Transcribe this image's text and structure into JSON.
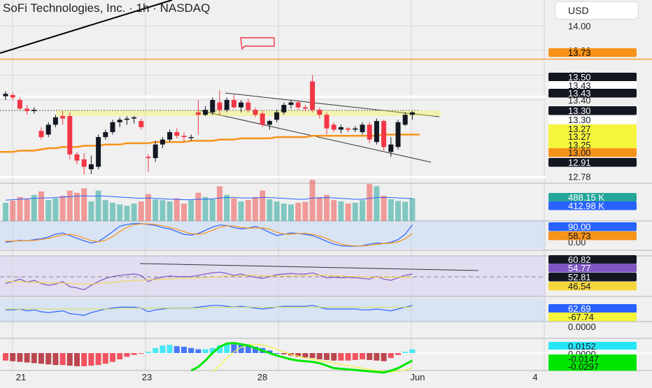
{
  "header": {
    "title": "SoFi Technologies, Inc. · 1h · NASDAQ",
    "currency": "USD"
  },
  "price_axis": {
    "ticks": [
      "14.00",
      "13.80",
      "13.60",
      "13.40",
      "12.78",
      "0.00",
      "0.0000"
    ],
    "labels": [
      {
        "text": "13.73",
        "bg": "#f7931a",
        "fg": "#000000",
        "value": 13.73
      },
      {
        "text": "13.50",
        "bg": "#131722",
        "fg": "#ffffff",
        "value": 13.5
      },
      {
        "text": "13.43",
        "bg": "#ffffff",
        "fg": "#131722",
        "value": 13.46
      },
      {
        "text": "13.43",
        "bg": "#131722",
        "fg": "#ffffff",
        "value": 13.43
      },
      {
        "text": "13.30",
        "bg": "#131722",
        "fg": "#ffffff",
        "value": 13.3
      },
      {
        "text": "13.30",
        "bg": "#ffffff",
        "fg": "#131722",
        "value": 13.27
      },
      {
        "text": "13.27",
        "bg": "#f5f53c",
        "fg": "#131722",
        "value": 13.24
      },
      {
        "text": "13.27",
        "bg": "#f5f53c",
        "fg": "#131722",
        "value": 13.21
      },
      {
        "text": "13.25",
        "bg": "#f5f53c",
        "fg": "#131722",
        "value": 13.18
      },
      {
        "text": "13.00",
        "bg": "#f7931a",
        "fg": "#131722",
        "value": 13.14
      },
      {
        "text": "12.91",
        "bg": "#131722",
        "fg": "#ffffff",
        "value": 13.07
      },
      {
        "text": "488.15 K",
        "bg": "#26a69a",
        "fg": "#ffffff",
        "value": null
      },
      {
        "text": "412.98 K",
        "bg": "#2962ff",
        "fg": "#ffffff",
        "value": null
      },
      {
        "text": "90.00",
        "bg": "#2962ff",
        "fg": "#ffffff",
        "value": null
      },
      {
        "text": "58.73",
        "bg": "#f7931a",
        "fg": "#131722",
        "value": null
      },
      {
        "text": "60.82",
        "bg": "#131722",
        "fg": "#ffffff",
        "value": null
      },
      {
        "text": "54.77",
        "bg": "#7e57c2",
        "fg": "#ffffff",
        "value": null
      },
      {
        "text": "52.81",
        "bg": "#131722",
        "fg": "#ffffff",
        "value": null
      },
      {
        "text": "46.54",
        "bg": "#f5d63c",
        "fg": "#131722",
        "value": null
      },
      {
        "text": "62.69",
        "bg": "#2962ff",
        "fg": "#ffffff",
        "value": null
      },
      {
        "text": "-67.74",
        "bg": "#f5f53c",
        "fg": "#131722",
        "value": null
      },
      {
        "text": "0.0152",
        "bg": "#26e6f6",
        "fg": "#131722",
        "value": null
      },
      {
        "text": "0.0000",
        "bg": "#ffffff",
        "fg": "#131722",
        "value": null
      },
      {
        "text": "-0.0147",
        "bg": "#00e600",
        "fg": "#131722",
        "value": null
      },
      {
        "text": "-0.0297",
        "bg": "#00e600",
        "fg": "#131722",
        "value": null
      }
    ]
  },
  "time_axis": {
    "labels": [
      "21",
      "23",
      "28",
      "Jun",
      "4"
    ]
  },
  "colors": {
    "up": "#131722",
    "down": "#f23645",
    "vol_up": "#26a69a",
    "vol_down": "#ef5350",
    "ma200": "#f7931a",
    "horizontal_line": "#f7931a",
    "stoch_k": "#2962ff",
    "stoch_d": "#f7931a",
    "rsi": "#7e57c2",
    "macd_pos": "#26e6f6",
    "macd_neg": "#2962ff",
    "macd_down": "#b22833",
    "macd_up": "#f23645"
  },
  "chart_data": {
    "type": "candlestick",
    "title": "SoFi Technologies, Inc. · 1h · NASDAQ",
    "ylim": [
      12.75,
      14.05
    ],
    "horizontal_level": 13.73,
    "candles": [
      [
        13.43,
        13.47,
        13.4,
        13.45
      ],
      [
        13.44,
        13.46,
        13.4,
        13.42
      ],
      [
        13.4,
        13.42,
        13.32,
        13.33
      ],
      [
        13.33,
        13.36,
        13.28,
        13.31
      ],
      [
        13.31,
        13.34,
        13.29,
        13.32
      ],
      [
        13.15,
        13.18,
        13.08,
        13.1
      ],
      [
        13.12,
        13.22,
        13.1,
        13.2
      ],
      [
        13.2,
        13.28,
        13.18,
        13.26
      ],
      [
        13.27,
        13.31,
        13.2,
        13.25
      ],
      [
        13.27,
        13.3,
        12.92,
        12.96
      ],
      [
        12.96,
        12.98,
        12.88,
        12.91
      ],
      [
        12.92,
        12.97,
        12.8,
        12.86
      ],
      [
        12.84,
        12.95,
        12.8,
        12.88
      ],
      [
        12.86,
        13.12,
        12.84,
        13.1
      ],
      [
        13.1,
        13.16,
        13.08,
        13.14
      ],
      [
        13.14,
        13.24,
        13.12,
        13.22
      ],
      [
        13.22,
        13.26,
        13.18,
        13.24
      ],
      [
        13.24,
        13.27,
        13.2,
        13.25
      ],
      [
        13.25,
        13.27,
        13.21,
        13.26
      ],
      [
        13.23,
        13.25,
        13.16,
        13.18
      ],
      [
        12.94,
        12.96,
        12.82,
        12.93
      ],
      [
        12.93,
        13.07,
        12.9,
        13.04
      ],
      [
        13.04,
        13.1,
        13.01,
        13.08
      ],
      [
        13.08,
        13.16,
        13.06,
        13.14
      ],
      [
        13.14,
        13.17,
        13.09,
        13.11
      ],
      [
        13.11,
        13.14,
        13.06,
        13.1
      ],
      [
        13.1,
        13.12,
        13.07,
        13.1
      ],
      [
        13.3,
        13.4,
        13.12,
        13.28
      ],
      [
        13.28,
        13.35,
        13.27,
        13.32
      ],
      [
        13.3,
        13.42,
        13.28,
        13.4
      ],
      [
        13.38,
        13.48,
        13.28,
        13.32
      ],
      [
        13.32,
        13.42,
        13.3,
        13.4
      ],
      [
        13.4,
        13.44,
        13.33,
        13.34
      ],
      [
        13.34,
        13.4,
        13.3,
        13.38
      ],
      [
        13.38,
        13.41,
        13.3,
        13.32
      ],
      [
        13.32,
        13.34,
        13.26,
        13.28
      ],
      [
        13.29,
        13.31,
        13.18,
        13.2
      ],
      [
        13.2,
        13.24,
        13.16,
        13.23
      ],
      [
        13.24,
        13.32,
        13.22,
        13.3
      ],
      [
        13.3,
        13.38,
        13.28,
        13.36
      ],
      [
        13.36,
        13.4,
        13.33,
        13.38
      ],
      [
        13.38,
        13.4,
        13.32,
        13.34
      ],
      [
        13.34,
        13.36,
        13.31,
        13.33
      ],
      [
        13.55,
        13.6,
        13.3,
        13.32
      ],
      [
        13.32,
        13.34,
        13.25,
        13.28
      ],
      [
        13.28,
        13.3,
        13.12,
        13.17
      ],
      [
        13.2,
        13.22,
        13.14,
        13.16
      ],
      [
        13.16,
        13.2,
        13.13,
        13.18
      ],
      [
        13.17,
        13.18,
        13.14,
        13.16
      ],
      [
        13.16,
        13.19,
        13.14,
        13.17
      ],
      [
        13.14,
        13.22,
        13.12,
        13.2
      ],
      [
        13.2,
        13.22,
        13.05,
        13.08
      ],
      [
        13.06,
        13.25,
        13.04,
        13.23
      ],
      [
        13.23,
        13.24,
        12.99,
        13.02
      ],
      [
        12.98,
        13.1,
        12.94,
        13.04
      ],
      [
        13.02,
        13.24,
        13.0,
        13.22
      ],
      [
        13.2,
        13.3,
        13.19,
        13.28
      ],
      [
        13.28,
        13.31,
        13.24,
        13.3
      ]
    ],
    "ma200": [
      12.98,
      12.98,
      12.99,
      12.99,
      12.99,
      13.0,
      13.01,
      13.01,
      13.02,
      13.02,
      13.02,
      13.03,
      13.03,
      13.03,
      13.04,
      13.04,
      13.04,
      13.05,
      13.05,
      13.05,
      13.05,
      13.06,
      13.06,
      13.06,
      13.06,
      13.06,
      13.07,
      13.07,
      13.07,
      13.07,
      13.08,
      13.08,
      13.08,
      13.09,
      13.09,
      13.09,
      13.09,
      13.09,
      13.1,
      13.1,
      13.1,
      13.1,
      13.1,
      13.11,
      13.11,
      13.11,
      13.11,
      13.11,
      13.11,
      13.11,
      13.11,
      13.11,
      13.11,
      13.12,
      13.12,
      13.12,
      13.12,
      13.12
    ],
    "volume": [
      0.42,
      0.47,
      0.55,
      0.5,
      0.6,
      0.68,
      0.48,
      0.52,
      0.58,
      0.7,
      0.65,
      0.75,
      0.45,
      0.7,
      0.48,
      0.42,
      0.38,
      0.35,
      0.4,
      0.45,
      0.62,
      0.5,
      0.48,
      0.45,
      0.52,
      0.4,
      0.48,
      0.65,
      0.55,
      0.5,
      0.8,
      0.6,
      0.52,
      0.45,
      0.48,
      0.55,
      0.7,
      0.5,
      0.45,
      0.4,
      0.38,
      0.42,
      0.44,
      0.95,
      0.55,
      0.6,
      0.48,
      0.45,
      0.4,
      0.42,
      0.48,
      0.85,
      0.8,
      0.58,
      0.5,
      0.46,
      0.44,
      0.52
    ],
    "volume_ma": [
      0.48,
      0.49,
      0.5,
      0.51,
      0.52,
      0.53,
      0.53,
      0.54,
      0.55,
      0.56,
      0.57,
      0.58,
      0.57,
      0.58,
      0.57,
      0.56,
      0.55,
      0.54,
      0.53,
      0.52,
      0.53,
      0.52,
      0.51,
      0.5,
      0.5,
      0.49,
      0.49,
      0.5,
      0.5,
      0.51,
      0.53,
      0.54,
      0.54,
      0.53,
      0.53,
      0.53,
      0.54,
      0.54,
      0.53,
      0.52,
      0.51,
      0.5,
      0.5,
      0.53,
      0.53,
      0.54,
      0.53,
      0.52,
      0.51,
      0.5,
      0.5,
      0.52,
      0.54,
      0.54,
      0.54,
      0.53,
      0.52,
      0.52
    ],
    "stoch_k": [
      25,
      28,
      32,
      30,
      35,
      38,
      45,
      55,
      60,
      50,
      40,
      30,
      22,
      28,
      45,
      65,
      85,
      92,
      95,
      95,
      92,
      88,
      80,
      75,
      65,
      55,
      52,
      58,
      70,
      82,
      90,
      88,
      80,
      75,
      78,
      85,
      75,
      62,
      50,
      55,
      60,
      58,
      55,
      50,
      40,
      28,
      18,
      12,
      10,
      10,
      12,
      18,
      22,
      20,
      25,
      35,
      55,
      90
    ],
    "stoch_d": [
      30,
      29,
      30,
      31,
      32,
      35,
      40,
      46,
      53,
      55,
      50,
      40,
      31,
      27,
      32,
      46,
      65,
      81,
      91,
      94,
      94,
      92,
      87,
      81,
      73,
      65,
      57,
      55,
      60,
      70,
      81,
      87,
      86,
      81,
      78,
      79,
      79,
      74,
      62,
      56,
      55,
      58,
      58,
      55,
      48,
      39,
      28,
      19,
      13,
      11,
      11,
      13,
      17,
      20,
      22,
      27,
      38,
      58
    ],
    "rsi": [
      45,
      48,
      52,
      47,
      50,
      45,
      42,
      44,
      48,
      40,
      38,
      35,
      42,
      48,
      53,
      56,
      58,
      59,
      60,
      58,
      48,
      53,
      55,
      57,
      56,
      56,
      56,
      58,
      60,
      62,
      63,
      61,
      58,
      60,
      57,
      55,
      53,
      56,
      59,
      60,
      61,
      60,
      60,
      62,
      58,
      54,
      55,
      54,
      55,
      54,
      53,
      52,
      56,
      52,
      50,
      54,
      58,
      60
    ],
    "rsi_ma": [
      48,
      48,
      48,
      47,
      47,
      46,
      46,
      46,
      46,
      45,
      44,
      44,
      44,
      45,
      46,
      47,
      48,
      49,
      50,
      50,
      51,
      51,
      52,
      52,
      53,
      53,
      53,
      54,
      54,
      55,
      56,
      57,
      57,
      57,
      58,
      58,
      57,
      57,
      57,
      57,
      57,
      57,
      58,
      58,
      58,
      58,
      57,
      57,
      56,
      56,
      56,
      55,
      55,
      55,
      55,
      55,
      55,
      55
    ],
    "wave": [
      55,
      55,
      56,
      54,
      55,
      53,
      52,
      53,
      54,
      51,
      50,
      49,
      52,
      54,
      56,
      57,
      58,
      58,
      58,
      57,
      53,
      55,
      56,
      57,
      57,
      57,
      57,
      58,
      59,
      60,
      60,
      59,
      58,
      59,
      58,
      57,
      56,
      57,
      58,
      59,
      59,
      59,
      59,
      60,
      58,
      56,
      56,
      56,
      56,
      56,
      55,
      55,
      56,
      55,
      54,
      56,
      58,
      60
    ],
    "wave_signal": [
      56,
      56,
      56,
      56,
      56,
      56,
      56,
      56,
      56,
      56,
      56,
      56,
      56,
      56,
      56,
      56,
      57,
      57,
      57,
      57,
      57,
      57,
      57,
      57,
      57,
      57,
      57,
      57,
      57,
      58,
      58,
      58,
      58,
      58,
      58,
      58,
      58,
      58,
      58,
      58,
      58,
      58,
      58,
      58,
      58,
      58,
      58,
      58,
      58,
      58,
      58,
      58,
      58,
      58,
      58,
      58,
      58,
      58
    ],
    "macd_hist": [
      -0.012,
      -0.013,
      -0.014,
      -0.015,
      -0.016,
      -0.017,
      -0.018,
      -0.019,
      -0.019,
      -0.02,
      -0.021,
      -0.021,
      -0.02,
      -0.019,
      -0.017,
      -0.014,
      -0.01,
      -0.006,
      -0.003,
      -0.001,
      0.002,
      0.008,
      0.012,
      0.013,
      0.011,
      0.01,
      0.008,
      0.006,
      0.006,
      0.008,
      0.012,
      0.015,
      0.014,
      0.013,
      0.011,
      0.01,
      0.008,
      0.004,
      0.0,
      -0.002,
      -0.004,
      -0.006,
      -0.007,
      -0.008,
      -0.01,
      -0.011,
      -0.012,
      -0.012,
      -0.012,
      -0.011,
      -0.01,
      -0.011,
      -0.012,
      -0.013,
      -0.008,
      -0.003,
      0.002,
      0.006
    ],
    "macd_line": [
      null,
      null,
      null,
      null,
      null,
      null,
      null,
      null,
      null,
      null,
      null,
      null,
      null,
      null,
      null,
      null,
      null,
      null,
      null,
      null,
      null,
      null,
      null,
      null,
      null,
      null,
      -0.028,
      -0.022,
      -0.012,
      0.0,
      0.01,
      0.015,
      0.016,
      0.014,
      0.012,
      0.008,
      0.004,
      0.0,
      -0.004,
      -0.007,
      -0.01,
      -0.012,
      -0.013,
      -0.014,
      -0.016,
      -0.02,
      -0.024,
      -0.025,
      -0.026,
      -0.027,
      -0.028,
      -0.029,
      -0.03,
      -0.031,
      -0.028,
      -0.024,
      -0.018,
      -0.012
    ],
    "macd_signal": [
      null,
      null,
      null,
      null,
      null,
      null,
      null,
      null,
      null,
      null,
      null,
      null,
      null,
      null,
      null,
      null,
      null,
      null,
      null,
      null,
      null,
      null,
      null,
      null,
      null,
      null,
      null,
      null,
      null,
      -0.03,
      -0.02,
      -0.008,
      0.002,
      0.009,
      0.013,
      0.014,
      0.013,
      0.01,
      0.006,
      0.002,
      -0.002,
      -0.005,
      -0.008,
      -0.01,
      -0.012,
      -0.014,
      -0.016,
      -0.018,
      -0.02,
      -0.022,
      -0.024,
      -0.026,
      -0.028,
      -0.029,
      -0.03,
      -0.029,
      -0.027,
      -0.023
    ]
  }
}
